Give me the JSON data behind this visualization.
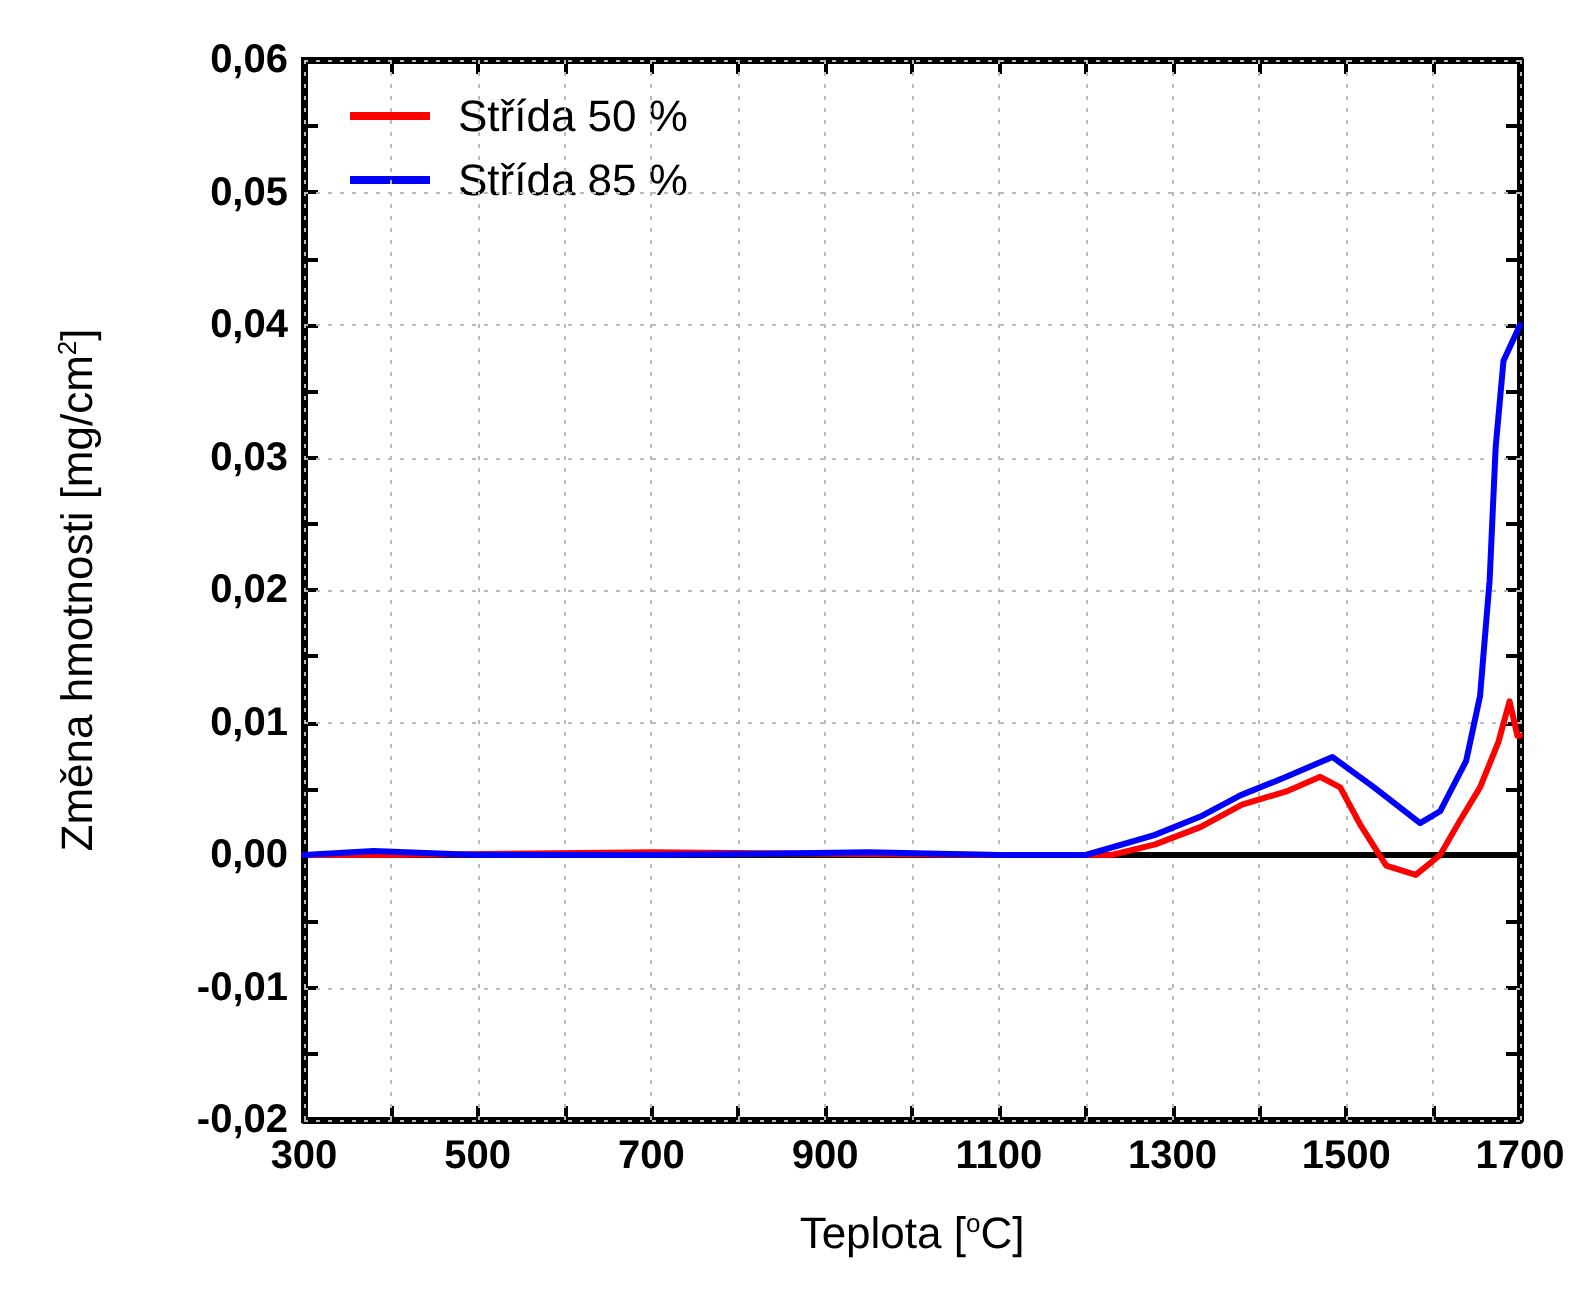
{
  "chart_data": {
    "type": "line",
    "xlabel": "Teplota [$^{o}$C]",
    "ylabel": "Změna hmotnosti [mg/cm$^{2}$]",
    "xlim": [
      300,
      1700
    ],
    "ylim": [
      -0.02,
      0.06
    ],
    "xticks": [
      300,
      {
        "value": 400,
        "label": null
      },
      500,
      {
        "value": 600,
        "label": null
      },
      700,
      {
        "value": 800,
        "label": null
      },
      900,
      {
        "value": 1000,
        "label": null
      },
      1100,
      {
        "value": 1200,
        "label": null
      },
      1300,
      {
        "value": 1400,
        "label": null
      },
      1500,
      {
        "value": 1600,
        "label": null
      },
      1700
    ],
    "yticks": [
      {
        "value": -0.02,
        "label": "-0,02"
      },
      {
        "value": -0.015,
        "label": null
      },
      {
        "value": -0.01,
        "label": "-0,01"
      },
      {
        "value": -0.005,
        "label": null
      },
      {
        "value": 0,
        "label": "0,00"
      },
      {
        "value": 0.005,
        "label": null
      },
      {
        "value": 0.01,
        "label": "0,01"
      },
      {
        "value": 0.015,
        "label": null
      },
      {
        "value": 0.02,
        "label": "0,02"
      },
      {
        "value": 0.025,
        "label": null
      },
      {
        "value": 0.03,
        "label": "0,03"
      },
      {
        "value": 0.035,
        "label": null
      },
      {
        "value": 0.04,
        "label": "0,04"
      },
      {
        "value": 0.045,
        "label": null
      },
      {
        "value": 0.05,
        "label": "0,05"
      },
      {
        "value": 0.055,
        "label": null
      },
      {
        "value": 0.06,
        "label": "0,06"
      }
    ],
    "grid": true,
    "legend": "top left",
    "marker": "none",
    "line_style": "solid",
    "ref_lines": [
      {
        "axis": "y",
        "value": 0,
        "color": "#000000"
      }
    ],
    "series": [
      {
        "name": "Střída 50 %",
        "color": "#ff0000",
        "x": [
          300,
          400,
          700,
          900,
          1100,
          1230,
          1280,
          1332,
          1380,
          1431,
          1470,
          1493,
          1516,
          1546,
          1580,
          1608,
          1630,
          1654,
          1675,
          1688,
          1697,
          1700
        ],
        "values": [
          0,
          0,
          0.0002,
          0.0001,
          0,
          0,
          0.0008,
          0.0021,
          0.0038,
          0.0048,
          0.0059,
          0.0051,
          0.0023,
          -0.0008,
          -0.0015,
          0,
          0.0025,
          0.0051,
          0.0085,
          0.0116,
          0.009,
          0.009
        ]
      },
      {
        "name": "Střída 85 %",
        "color": "#0000ff",
        "x": [
          300,
          380,
          500,
          700,
          950,
          1100,
          1200,
          1279,
          1332,
          1378,
          1431,
          1484,
          1532,
          1585,
          1608,
          1638,
          1654,
          1665,
          1672,
          1681,
          1693,
          1700
        ],
        "values": [
          0,
          0.0003,
          0,
          0,
          0.0002,
          0,
          0,
          0.0015,
          0.0029,
          0.0045,
          0.0059,
          0.0074,
          0.0051,
          0.0024,
          0.0033,
          0.0071,
          0.012,
          0.0207,
          0.0308,
          0.0373,
          0.039,
          0.04
        ]
      }
    ]
  }
}
